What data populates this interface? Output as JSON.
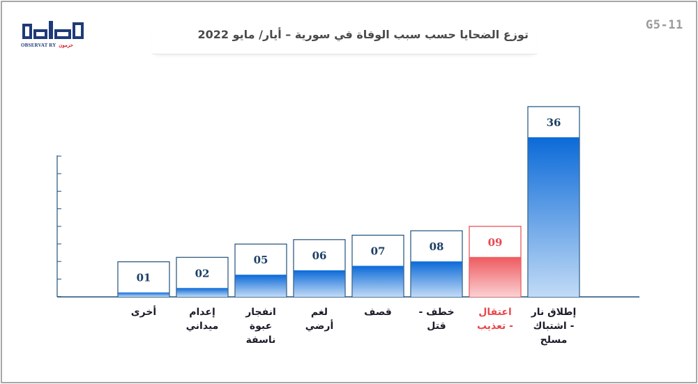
{
  "code": "G5-11",
  "logo": {
    "name": "مرصد",
    "sub_en": "OBSERVAT RY",
    "sub_ar": "حرمون"
  },
  "colors": {
    "bar": "#0b6ad8",
    "bar_light": "#cfe1f7",
    "highlight": "#e8484d",
    "axis": "#1f4f7a",
    "label": "#1c1c2a"
  },
  "chart_data": {
    "type": "bar",
    "title": "توزع الضحايا حسب سبب الوفاة في سورية – أيار/ مايو 2022",
    "xlabel": "",
    "ylabel": "",
    "ylim": [
      0,
      36
    ],
    "grid": false,
    "categories": [
      "أخرى",
      "إعدام ميداني",
      "انفجار عبوة ناسفة",
      "لغم أرضي",
      "قصف",
      "خطف - قتل",
      "اعتقال - تعذيب",
      "إطلاق نار - اشتباك مسلح"
    ],
    "category_lines": [
      [
        "أخرى"
      ],
      [
        "إعدام",
        "ميداني"
      ],
      [
        "انفجار",
        "عبوة",
        "ناسفة"
      ],
      [
        "لغم",
        "أرضي"
      ],
      [
        "قصف"
      ],
      [
        "خطف -",
        "قتل"
      ],
      [
        "اعتقال",
        "- تعذيب"
      ],
      [
        "إطلاق نار",
        "- اشتباك",
        "مسلح"
      ]
    ],
    "values": [
      1,
      2,
      5,
      6,
      7,
      8,
      9,
      36
    ],
    "value_labels": [
      "01",
      "02",
      "05",
      "06",
      "07",
      "08",
      "09",
      "36"
    ],
    "highlight_category": "اعتقال - تعذيب"
  }
}
